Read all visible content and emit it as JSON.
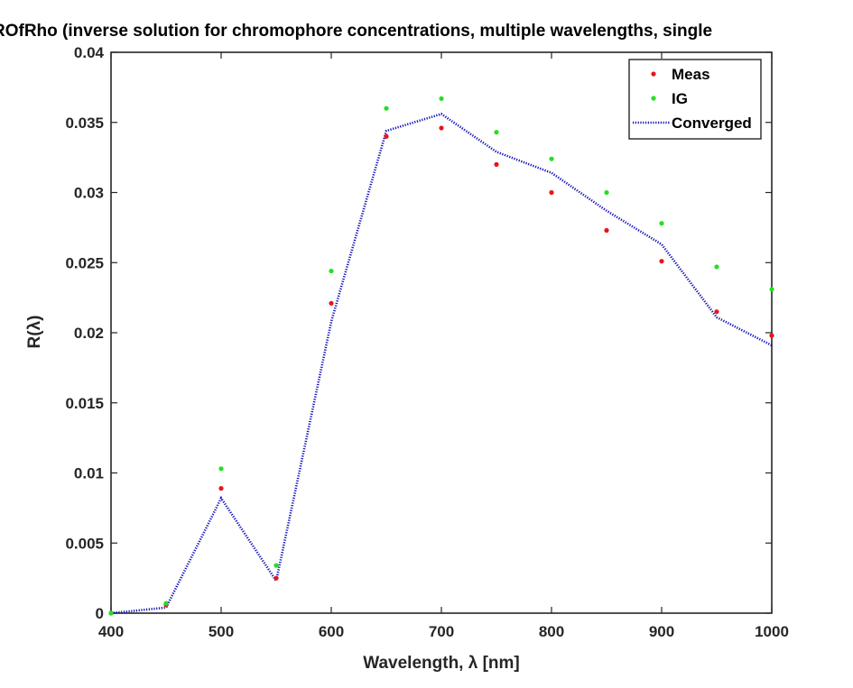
{
  "chart_data": {
    "type": "line",
    "title": "ROfRho (inverse solution for chromophore concentrations, multiple wavelengths, single",
    "xlabel": "Wavelength, λ [nm]",
    "ylabel": "R(λ)",
    "xlim": [
      400,
      1000
    ],
    "ylim": [
      0,
      0.04
    ],
    "x_ticks": [
      "400",
      "500",
      "600",
      "700",
      "800",
      "900",
      "1000"
    ],
    "y_ticks": [
      "0",
      "0.005",
      "0.01",
      "0.015",
      "0.02",
      "0.025",
      "0.03",
      "0.035",
      "0.04"
    ],
    "x": [
      400,
      450,
      500,
      550,
      600,
      650,
      700,
      750,
      800,
      850,
      900,
      950,
      1000
    ],
    "series": [
      {
        "name": "Meas",
        "style": "dots",
        "color": "#e8141b",
        "values": [
          0.0,
          0.0006,
          0.0089,
          0.0025,
          0.0221,
          0.034,
          0.0346,
          0.032,
          0.03,
          0.0273,
          0.0251,
          0.0215,
          0.0198
        ]
      },
      {
        "name": "IG",
        "style": "dots",
        "color": "#22e022",
        "values": [
          0.0,
          0.0007,
          0.0103,
          0.0034,
          0.0244,
          0.036,
          0.0367,
          0.0343,
          0.0324,
          0.03,
          0.0278,
          0.0247,
          0.0231
        ]
      },
      {
        "name": "Converged",
        "style": "dotted-line",
        "color": "#0b0bb8",
        "values": [
          0.0,
          0.0004,
          0.0082,
          0.0023,
          0.0208,
          0.0344,
          0.0356,
          0.0329,
          0.0314,
          0.0287,
          0.0263,
          0.0211,
          0.0191
        ]
      }
    ],
    "grid": false,
    "legend_position": "top-right"
  }
}
